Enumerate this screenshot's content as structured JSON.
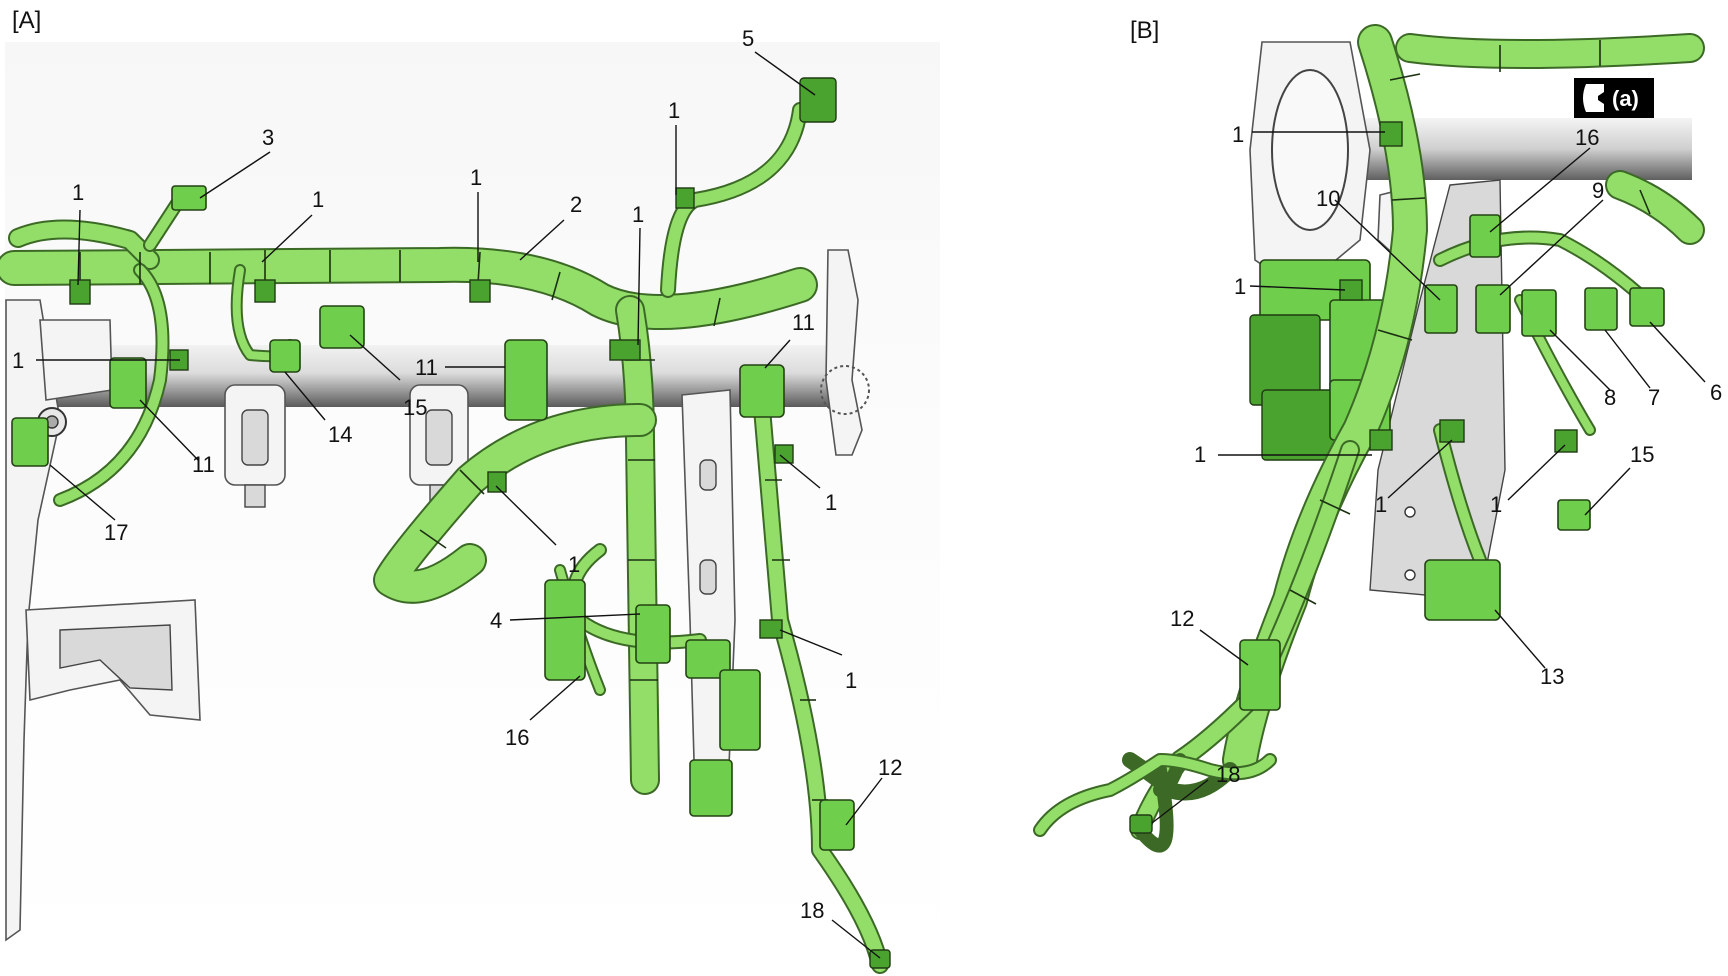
{
  "panels": {
    "a": {
      "label": "[A]"
    },
    "b": {
      "label": "[B]"
    }
  },
  "tool_badge": {
    "icon": "wrench-icon",
    "text": "(a)"
  },
  "callouts_a": [
    {
      "id": "a-1-left-top",
      "text": "1"
    },
    {
      "id": "a-1-mid-top",
      "text": "1"
    },
    {
      "id": "a-1-center-top",
      "text": "1"
    },
    {
      "id": "a-1-clip-top",
      "text": "1"
    },
    {
      "id": "a-1-vertical",
      "text": "1"
    },
    {
      "id": "a-1-left-side",
      "text": "1"
    },
    {
      "id": "a-1-right-mid",
      "text": "1"
    },
    {
      "id": "a-1-lower-center",
      "text": "1"
    },
    {
      "id": "a-1-right-lower",
      "text": "1"
    },
    {
      "id": "a-2",
      "text": "2"
    },
    {
      "id": "a-3",
      "text": "3"
    },
    {
      "id": "a-4",
      "text": "4"
    },
    {
      "id": "a-5",
      "text": "5"
    },
    {
      "id": "a-11-center",
      "text": "11"
    },
    {
      "id": "a-11-right",
      "text": "11"
    },
    {
      "id": "a-11-left",
      "text": "11"
    },
    {
      "id": "a-12",
      "text": "12"
    },
    {
      "id": "a-14",
      "text": "14"
    },
    {
      "id": "a-15",
      "text": "15"
    },
    {
      "id": "a-16",
      "text": "16"
    },
    {
      "id": "a-17",
      "text": "17"
    },
    {
      "id": "a-18",
      "text": "18"
    }
  ],
  "callouts_b": [
    {
      "id": "b-1-top",
      "text": "1"
    },
    {
      "id": "b-1-left-mid",
      "text": "1"
    },
    {
      "id": "b-1-left-low",
      "text": "1"
    },
    {
      "id": "b-1-center-low",
      "text": "1"
    },
    {
      "id": "b-1-right-low",
      "text": "1"
    },
    {
      "id": "b-6",
      "text": "6"
    },
    {
      "id": "b-7",
      "text": "7"
    },
    {
      "id": "b-8",
      "text": "8"
    },
    {
      "id": "b-9",
      "text": "9"
    },
    {
      "id": "b-10",
      "text": "10"
    },
    {
      "id": "b-12",
      "text": "12"
    },
    {
      "id": "b-13",
      "text": "13"
    },
    {
      "id": "b-15",
      "text": "15"
    },
    {
      "id": "b-16",
      "text": "16"
    },
    {
      "id": "b-18",
      "text": "18"
    }
  ]
}
